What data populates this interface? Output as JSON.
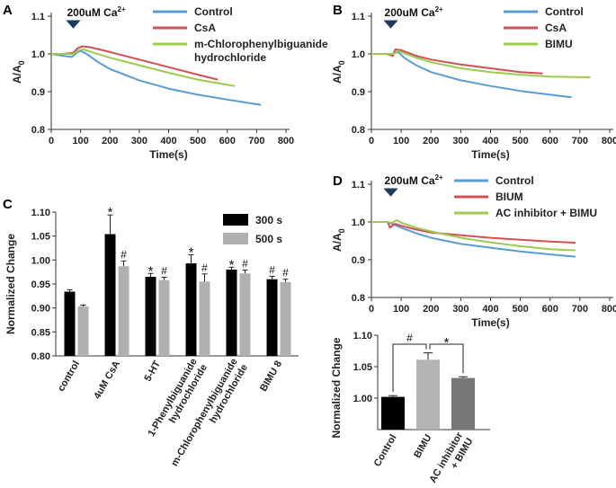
{
  "figure": {
    "panels": [
      {
        "label": "A"
      },
      {
        "label": "B"
      },
      {
        "label": "C"
      },
      {
        "label": "D"
      }
    ]
  },
  "chart_data": [
    {
      "panel": "A",
      "type": "line",
      "annotation": "200uM Ca",
      "annotation_sup": "2+",
      "xlabel": "Time(s)",
      "ylabel": "A/A",
      "ylabel_sub": "0",
      "xlim": [
        0,
        800
      ],
      "ylim": [
        0.8,
        1.1
      ],
      "xticks": [
        0,
        100,
        200,
        300,
        400,
        500,
        600,
        700,
        800
      ],
      "yticks": [
        0.8,
        0.9,
        1.0,
        1.1
      ],
      "series": [
        {
          "name": "Control",
          "color": "#5b9bd5",
          "x": [
            0,
            40,
            70,
            90,
            100,
            120,
            160,
            200,
            300,
            400,
            500,
            600,
            715
          ],
          "y": [
            1.0,
            0.995,
            0.992,
            1.005,
            1.008,
            1.0,
            0.978,
            0.96,
            0.93,
            0.908,
            0.892,
            0.879,
            0.865
          ]
        },
        {
          "name": "CsA",
          "color": "#d05055",
          "x": [
            0,
            40,
            75,
            90,
            105,
            130,
            200,
            300,
            400,
            500,
            568
          ],
          "y": [
            1.0,
            1.0,
            1.003,
            1.015,
            1.02,
            1.018,
            1.005,
            0.985,
            0.965,
            0.945,
            0.932
          ]
        },
        {
          "name": "m-Chlorophenylbiguanide hydrochloride",
          "color": "#9bcb4f",
          "x": [
            0,
            40,
            75,
            95,
            110,
            150,
            200,
            300,
            400,
            500,
            625
          ],
          "y": [
            1.0,
            1.0,
            1.0,
            1.01,
            1.012,
            1.002,
            0.99,
            0.97,
            0.95,
            0.932,
            0.915
          ]
        }
      ]
    },
    {
      "panel": "B",
      "type": "line",
      "annotation": "200uM Ca",
      "annotation_sup": "2+",
      "xlabel": "Time(s)",
      "ylabel": "A/A",
      "ylabel_sub": "0",
      "xlim": [
        0,
        800
      ],
      "ylim": [
        0.8,
        1.1
      ],
      "xticks": [
        0,
        100,
        200,
        300,
        400,
        500,
        600,
        700,
        800
      ],
      "yticks": [
        0.8,
        0.9,
        1.0,
        1.1
      ],
      "series": [
        {
          "name": "Control",
          "color": "#5b9bd5",
          "x": [
            0,
            50,
            70,
            90,
            110,
            150,
            200,
            300,
            400,
            500,
            600,
            672
          ],
          "y": [
            1.0,
            1.0,
            1.0,
            1.005,
            0.99,
            0.97,
            0.952,
            0.93,
            0.915,
            0.902,
            0.892,
            0.885
          ]
        },
        {
          "name": "CsA",
          "color": "#d05055",
          "x": [
            0,
            50,
            72,
            80,
            100,
            150,
            200,
            300,
            400,
            500,
            575
          ],
          "y": [
            1.0,
            1.0,
            0.995,
            1.012,
            1.01,
            0.995,
            0.985,
            0.972,
            0.962,
            0.952,
            0.948
          ]
        },
        {
          "name": "BIMU",
          "color": "#9bcb4f",
          "x": [
            0,
            50,
            75,
            90,
            110,
            150,
            200,
            300,
            400,
            500,
            600,
            735
          ],
          "y": [
            1.0,
            1.0,
            1.0,
            1.008,
            1.002,
            0.99,
            0.978,
            0.962,
            0.952,
            0.945,
            0.94,
            0.938
          ]
        }
      ]
    },
    {
      "panel": "C",
      "type": "bar",
      "ylabel": "Normalized Change",
      "ylim": [
        0.8,
        1.1
      ],
      "yticks": [
        0.8,
        0.85,
        0.9,
        0.95,
        1.0,
        1.05,
        1.1
      ],
      "ytick_labels": [
        "0.80",
        "0.85",
        "0.90",
        "0.95",
        "1.00",
        "1.05",
        "1.10"
      ],
      "categories": [
        "control",
        "4uM CsA",
        "5-HT",
        "1-Phenylbiguanide hydrochloride",
        "m-Chlorophenylbiguanide hydrochloride",
        "BIMU 8"
      ],
      "category_lines": [
        [
          "control"
        ],
        [
          "4uM CsA"
        ],
        [
          "5-HT"
        ],
        [
          "1-Phenylbiguanide",
          "hydrochloride"
        ],
        [
          "m-Chlorophenylbiguanide",
          "hydrochloride"
        ],
        [
          "BIMU 8"
        ]
      ],
      "series": [
        {
          "name": "300 s",
          "color": "#000000",
          "values": [
            0.934,
            1.054,
            0.965,
            0.993,
            0.98,
            0.96
          ],
          "errors": [
            0.004,
            0.04,
            0.007,
            0.018,
            0.005,
            0.006
          ],
          "marks": [
            "",
            "*",
            "*",
            "*",
            "*",
            "#"
          ]
        },
        {
          "name": "500 s",
          "color": "#b0b0b0",
          "values": [
            0.903,
            0.987,
            0.958,
            0.955,
            0.972,
            0.954
          ],
          "errors": [
            0.003,
            0.011,
            0.006,
            0.016,
            0.007,
            0.006
          ],
          "marks": [
            "",
            "#",
            "#",
            "#",
            "#",
            "#"
          ]
        }
      ]
    },
    {
      "panel": "D",
      "type": "line",
      "annotation": "200uM Ca",
      "annotation_sup": "2+",
      "xlabel": "Time(s)",
      "ylabel": "A/A",
      "ylabel_sub": "0",
      "xlim": [
        0,
        800
      ],
      "ylim": [
        0.8,
        1.1
      ],
      "xticks": [
        0,
        100,
        200,
        300,
        400,
        500,
        600,
        700,
        800
      ],
      "yticks": [
        0.8,
        0.9,
        1.0,
        1.1
      ],
      "series": [
        {
          "name": "Control",
          "color": "#5b9bd5",
          "x": [
            0,
            50,
            70,
            100,
            150,
            200,
            300,
            400,
            500,
            600,
            685
          ],
          "y": [
            1.0,
            1.0,
            0.995,
            0.985,
            0.97,
            0.958,
            0.942,
            0.932,
            0.922,
            0.914,
            0.908
          ]
        },
        {
          "name": "BIUM",
          "color": "#d05055",
          "x": [
            0,
            55,
            62,
            70,
            80,
            100,
            150,
            200,
            300,
            400,
            500,
            600,
            685
          ],
          "y": [
            1.0,
            1.0,
            0.985,
            0.99,
            0.995,
            0.99,
            0.98,
            0.972,
            0.965,
            0.958,
            0.953,
            0.948,
            0.945
          ]
        },
        {
          "name": "AC inhibitor + BIMU",
          "color": "#9bcb4f",
          "x": [
            0,
            50,
            70,
            85,
            100,
            150,
            200,
            300,
            400,
            500,
            600,
            685
          ],
          "y": [
            1.0,
            1.0,
            0.998,
            1.005,
            0.998,
            0.985,
            0.975,
            0.958,
            0.946,
            0.936,
            0.928,
            0.925
          ]
        }
      ]
    },
    {
      "panel": "D-inset",
      "type": "bar",
      "ylabel": "Normalized Change",
      "ylim": [
        0.95,
        1.1
      ],
      "yticks": [
        1.0,
        1.05,
        1.1
      ],
      "ytick_labels": [
        "1.00",
        "1.05",
        "1.10"
      ],
      "categories": [
        "Control",
        "BIMU",
        "AC inhibitor + BIMU"
      ],
      "category_lines": [
        [
          "Control"
        ],
        [
          "BIMU"
        ],
        [
          "AC inhibitor",
          "+ BIMU"
        ]
      ],
      "colors": [
        "#000000",
        "#b4b4b4",
        "#777777"
      ],
      "values": [
        1.002,
        1.061,
        1.032
      ],
      "errors": [
        0.002,
        0.011,
        0.002
      ],
      "brackets": [
        {
          "from": 0,
          "to": 1,
          "mark": "#"
        },
        {
          "from": 1,
          "to": 2,
          "mark": "*"
        }
      ]
    }
  ]
}
